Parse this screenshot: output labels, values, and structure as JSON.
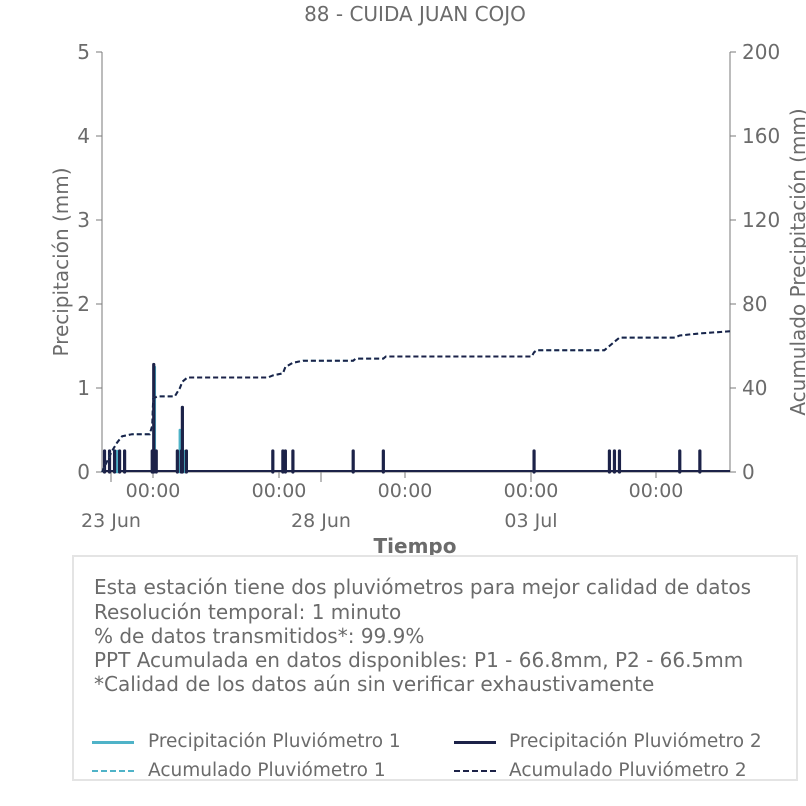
{
  "colors": {
    "p1": "#4fb3c8",
    "p2": "#1c2248",
    "text": "#6b6b6b",
    "axis": "#7a7a7a"
  },
  "chart_data": {
    "type": "line",
    "title": "88 - CUIDA JUAN COJO",
    "xlabel": "Tiempo",
    "ylabel_left": "Precipitación (mm)",
    "ylabel_right": "Acumulado Precipitación (mm)",
    "ylim_left": [
      0,
      5
    ],
    "ylim_right": [
      0,
      200
    ],
    "yticks_left": [
      "0",
      "1",
      "2",
      "3",
      "4",
      "5"
    ],
    "yticks_right": [
      "0",
      "40",
      "80",
      "120",
      "160",
      "200"
    ],
    "xticks_time": [
      "00:00",
      "00:00",
      "00:00",
      "00:00",
      "00:00"
    ],
    "xticks_date": [
      "23 Jun",
      "28 Jun",
      "03 Jul"
    ],
    "x_range_days": [
      0,
      12.5
    ],
    "xticks_time_pos_days": [
      1.7,
      6.7,
      11.7,
      16.7,
      21.7
    ],
    "series": [
      {
        "name": "Precipitación Pluviómetro 1",
        "axis": "left",
        "style": "solid",
        "spikes": [
          {
            "x": 0.15,
            "y": 0.25
          },
          {
            "x": 0.3,
            "y": 0.25
          },
          {
            "x": 0.45,
            "y": 0.25
          },
          {
            "x": 1.0,
            "y": 0.25
          },
          {
            "x": 1.05,
            "y": 1.25
          },
          {
            "x": 1.5,
            "y": 0.25
          },
          {
            "x": 1.55,
            "y": 0.5
          },
          {
            "x": 1.65,
            "y": 0.25
          },
          {
            "x": 3.4,
            "y": 0.25
          },
          {
            "x": 3.6,
            "y": 0.25
          },
          {
            "x": 3.8,
            "y": 0.25
          },
          {
            "x": 5.0,
            "y": 0.25
          },
          {
            "x": 5.6,
            "y": 0.25
          },
          {
            "x": 8.6,
            "y": 0.25
          },
          {
            "x": 10.1,
            "y": 0.25
          },
          {
            "x": 10.3,
            "y": 0.25
          },
          {
            "x": 11.5,
            "y": 0.25
          },
          {
            "x": 11.9,
            "y": 0.25
          }
        ]
      },
      {
        "name": "Precipitación Pluviómetro 2",
        "axis": "left",
        "style": "solid",
        "spikes": [
          {
            "x": 0.05,
            "y": 0.25
          },
          {
            "x": 0.15,
            "y": 0.25
          },
          {
            "x": 0.25,
            "y": 0.25
          },
          {
            "x": 0.35,
            "y": 0.25
          },
          {
            "x": 0.45,
            "y": 0.25
          },
          {
            "x": 1.0,
            "y": 0.25
          },
          {
            "x": 1.03,
            "y": 1.28
          },
          {
            "x": 1.08,
            "y": 0.25
          },
          {
            "x": 1.5,
            "y": 0.25
          },
          {
            "x": 1.58,
            "y": 0.25
          },
          {
            "x": 1.6,
            "y": 0.77
          },
          {
            "x": 1.68,
            "y": 0.25
          },
          {
            "x": 3.4,
            "y": 0.25
          },
          {
            "x": 3.6,
            "y": 0.25
          },
          {
            "x": 3.65,
            "y": 0.25
          },
          {
            "x": 3.8,
            "y": 0.25
          },
          {
            "x": 5.0,
            "y": 0.25
          },
          {
            "x": 5.6,
            "y": 0.25
          },
          {
            "x": 8.6,
            "y": 0.25
          },
          {
            "x": 10.1,
            "y": 0.25
          },
          {
            "x": 10.2,
            "y": 0.25
          },
          {
            "x": 10.3,
            "y": 0.25
          },
          {
            "x": 11.5,
            "y": 0.25
          },
          {
            "x": 11.9,
            "y": 0.25
          }
        ]
      },
      {
        "name": "Acumulado Pluviómetro 1",
        "axis": "right",
        "style": "dashed",
        "points": [
          [
            0.0,
            0
          ],
          [
            0.1,
            5
          ],
          [
            0.2,
            10
          ],
          [
            0.3,
            14
          ],
          [
            0.4,
            17
          ],
          [
            0.6,
            18
          ],
          [
            0.95,
            18
          ],
          [
            1.0,
            22
          ],
          [
            1.02,
            35
          ],
          [
            1.1,
            36
          ],
          [
            1.45,
            36
          ],
          [
            1.55,
            40
          ],
          [
            1.6,
            43
          ],
          [
            1.7,
            45
          ],
          [
            3.3,
            45
          ],
          [
            3.4,
            46
          ],
          [
            3.6,
            47
          ],
          [
            3.65,
            50
          ],
          [
            3.8,
            52
          ],
          [
            4.0,
            53
          ],
          [
            5.0,
            53
          ],
          [
            5.05,
            54
          ],
          [
            5.6,
            54
          ],
          [
            5.65,
            55
          ],
          [
            8.55,
            55
          ],
          [
            8.6,
            57
          ],
          [
            8.65,
            58
          ],
          [
            10.0,
            58
          ],
          [
            10.1,
            60
          ],
          [
            10.2,
            62
          ],
          [
            10.3,
            64
          ],
          [
            11.4,
            64
          ],
          [
            11.5,
            65
          ],
          [
            11.9,
            66
          ],
          [
            12.5,
            67
          ]
        ]
      },
      {
        "name": "Acumulado Pluviómetro 2",
        "axis": "right",
        "style": "dashed",
        "points": [
          [
            0.0,
            0
          ],
          [
            0.1,
            5
          ],
          [
            0.2,
            10
          ],
          [
            0.3,
            14
          ],
          [
            0.4,
            17
          ],
          [
            0.6,
            18
          ],
          [
            0.95,
            18
          ],
          [
            1.0,
            22
          ],
          [
            1.02,
            35
          ],
          [
            1.1,
            36
          ],
          [
            1.45,
            36
          ],
          [
            1.55,
            40
          ],
          [
            1.6,
            43
          ],
          [
            1.7,
            45
          ],
          [
            3.3,
            45
          ],
          [
            3.4,
            46
          ],
          [
            3.6,
            47
          ],
          [
            3.65,
            50
          ],
          [
            3.8,
            52
          ],
          [
            4.0,
            53
          ],
          [
            5.0,
            53
          ],
          [
            5.05,
            54
          ],
          [
            5.6,
            54
          ],
          [
            5.65,
            55
          ],
          [
            8.55,
            55
          ],
          [
            8.6,
            57
          ],
          [
            8.65,
            58
          ],
          [
            10.0,
            58
          ],
          [
            10.1,
            60
          ],
          [
            10.2,
            62
          ],
          [
            10.3,
            64
          ],
          [
            11.4,
            64
          ],
          [
            11.5,
            65
          ],
          [
            11.9,
            66
          ],
          [
            12.5,
            67
          ]
        ]
      }
    ]
  },
  "info": {
    "line1": "Esta estación tiene dos pluviómetros para mejor calidad de datos",
    "line2": "Resolución temporal: 1 minuto",
    "line3": "% de datos transmitidos*: 99.9%",
    "line4": "PPT Acumulada en datos disponibles: P1 - 66.8mm, P2 - 66.5mm",
    "line5": "*Calidad de los datos aún sin verificar exhaustivamente"
  },
  "legend": {
    "p1_precip": "Precipitación Pluviómetro 1",
    "p2_precip": "Precipitación Pluviómetro 2",
    "p1_acum": "Acumulado Pluviómetro 1",
    "p2_acum": "Acumulado Pluviómetro 2"
  }
}
